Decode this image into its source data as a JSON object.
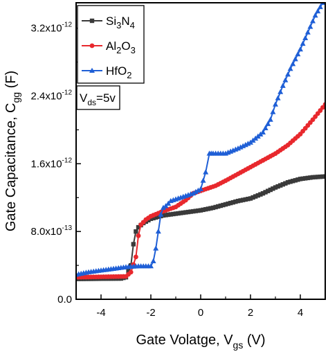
{
  "chart_data": {
    "type": "line",
    "xlabel": "Gate Volatge, V",
    "xlabel_sub": "gs",
    "xlabel_suffix": " (V)",
    "ylabel": "Gate Capacitance, C",
    "ylabel_sub": "gg",
    "ylabel_suffix": " (F)",
    "xlim": [
      -5,
      5
    ],
    "ylim": [
      0,
      3.5e-12
    ],
    "x_ticks": [
      {
        "value": -4,
        "label": "-4"
      },
      {
        "value": -2,
        "label": "-2"
      },
      {
        "value": 0,
        "label": "0"
      },
      {
        "value": 2,
        "label": "2"
      },
      {
        "value": 4,
        "label": "4"
      }
    ],
    "y_ticks": [
      {
        "value": 0,
        "base": "0.0",
        "exp": ""
      },
      {
        "value": 8e-13,
        "base": "8.0x10",
        "exp": "-13"
      },
      {
        "value": 1.6e-12,
        "base": "1.6x10",
        "exp": "-12"
      },
      {
        "value": 2.4e-12,
        "base": "2.4x10",
        "exp": "-12"
      },
      {
        "value": 3.2e-12,
        "base": "3.2x10",
        "exp": "-12"
      }
    ],
    "grid": false,
    "legend_position": "top-left",
    "annotation": {
      "main": "V",
      "sub": "ds",
      "suffix": "=5v"
    },
    "series": [
      {
        "name_parts": [
          {
            "t": "Si"
          },
          {
            "t": "3",
            "sub": true
          },
          {
            "t": "N"
          },
          {
            "t": "4",
            "sub": true
          }
        ],
        "color": "#3a3a3a",
        "marker": "square",
        "x": [
          -5.0,
          -3.2,
          -3.0,
          -2.8,
          -2.7,
          -2.6,
          -2.5,
          -2.3,
          -2.0,
          -1.5,
          -1.0,
          -0.5,
          0.0,
          0.5,
          1.0,
          1.5,
          2.0,
          2.5,
          3.0,
          3.5,
          4.0,
          4.5,
          5.0
        ],
        "y": [
          2.4e-13,
          2.45e-13,
          2.6e-13,
          4e-13,
          6.5e-13,
          8e-13,
          8.5e-13,
          9e-13,
          9.5e-13,
          9.9e-13,
          1.01e-12,
          1.03e-12,
          1.05e-12,
          1.08e-12,
          1.12e-12,
          1.16e-12,
          1.19e-12,
          1.25e-12,
          1.32e-12,
          1.38e-12,
          1.42e-12,
          1.44e-12,
          1.45e-12
        ]
      },
      {
        "name_parts": [
          {
            "t": "Al"
          },
          {
            "t": "2",
            "sub": true
          },
          {
            "t": "O"
          },
          {
            "t": "3",
            "sub": true
          }
        ],
        "color": "#e8282d",
        "marker": "circle",
        "x": [
          -5.0,
          -3.0,
          -2.8,
          -2.6,
          -2.5,
          -2.4,
          -2.2,
          -2.0,
          -1.5,
          -1.0,
          -0.6,
          -0.3,
          0.0,
          0.3,
          0.6,
          1.0,
          1.5,
          2.0,
          2.5,
          3.0,
          3.5,
          4.0,
          4.5,
          5.0
        ],
        "y": [
          2.6e-13,
          2.7e-13,
          3.2e-13,
          5e-13,
          7.5e-13,
          8.8e-13,
          9.4e-13,
          9.8e-13,
          1.04e-12,
          1.09e-12,
          1.17e-12,
          1.25e-12,
          1.28e-12,
          1.31e-12,
          1.34e-12,
          1.4e-12,
          1.48e-12,
          1.56e-12,
          1.64e-12,
          1.72e-12,
          1.82e-12,
          1.95e-12,
          2.12e-12,
          2.3e-12
        ]
      },
      {
        "name_parts": [
          {
            "t": "HfO"
          },
          {
            "t": "2",
            "sub": true
          }
        ],
        "color": "#1f5fd6",
        "marker": "triangle",
        "x": [
          -5.0,
          -4.5,
          -4.0,
          -3.5,
          -3.0,
          -2.5,
          -2.0,
          -1.9,
          -1.8,
          -1.7,
          -1.6,
          -1.5,
          -1.4,
          -1.3,
          -1.2,
          -1.0,
          -0.8,
          -0.6,
          -0.3,
          0.0,
          0.2,
          0.35,
          0.5,
          1.0,
          1.5,
          2.0,
          2.5,
          2.8,
          3.0,
          3.3,
          3.6,
          4.0,
          4.3,
          4.6,
          5.0
        ],
        "y": [
          2.9e-13,
          3.2e-13,
          3.4e-13,
          3.6e-13,
          3.8e-13,
          3.9e-13,
          3.9e-13,
          4.5e-13,
          6e-13,
          8e-13,
          1e-12,
          1.08e-12,
          1.1e-12,
          1.13e-12,
          1.16e-12,
          1.18e-12,
          1.2e-12,
          1.22e-12,
          1.25e-12,
          1.3e-12,
          1.5e-12,
          1.72e-12,
          1.72e-12,
          1.72e-12,
          1.78e-12,
          1.85e-12,
          1.97e-12,
          2.12e-12,
          2.3e-12,
          2.52e-12,
          2.72e-12,
          2.95e-12,
          3.15e-12,
          3.35e-12,
          3.55e-12
        ]
      }
    ]
  }
}
